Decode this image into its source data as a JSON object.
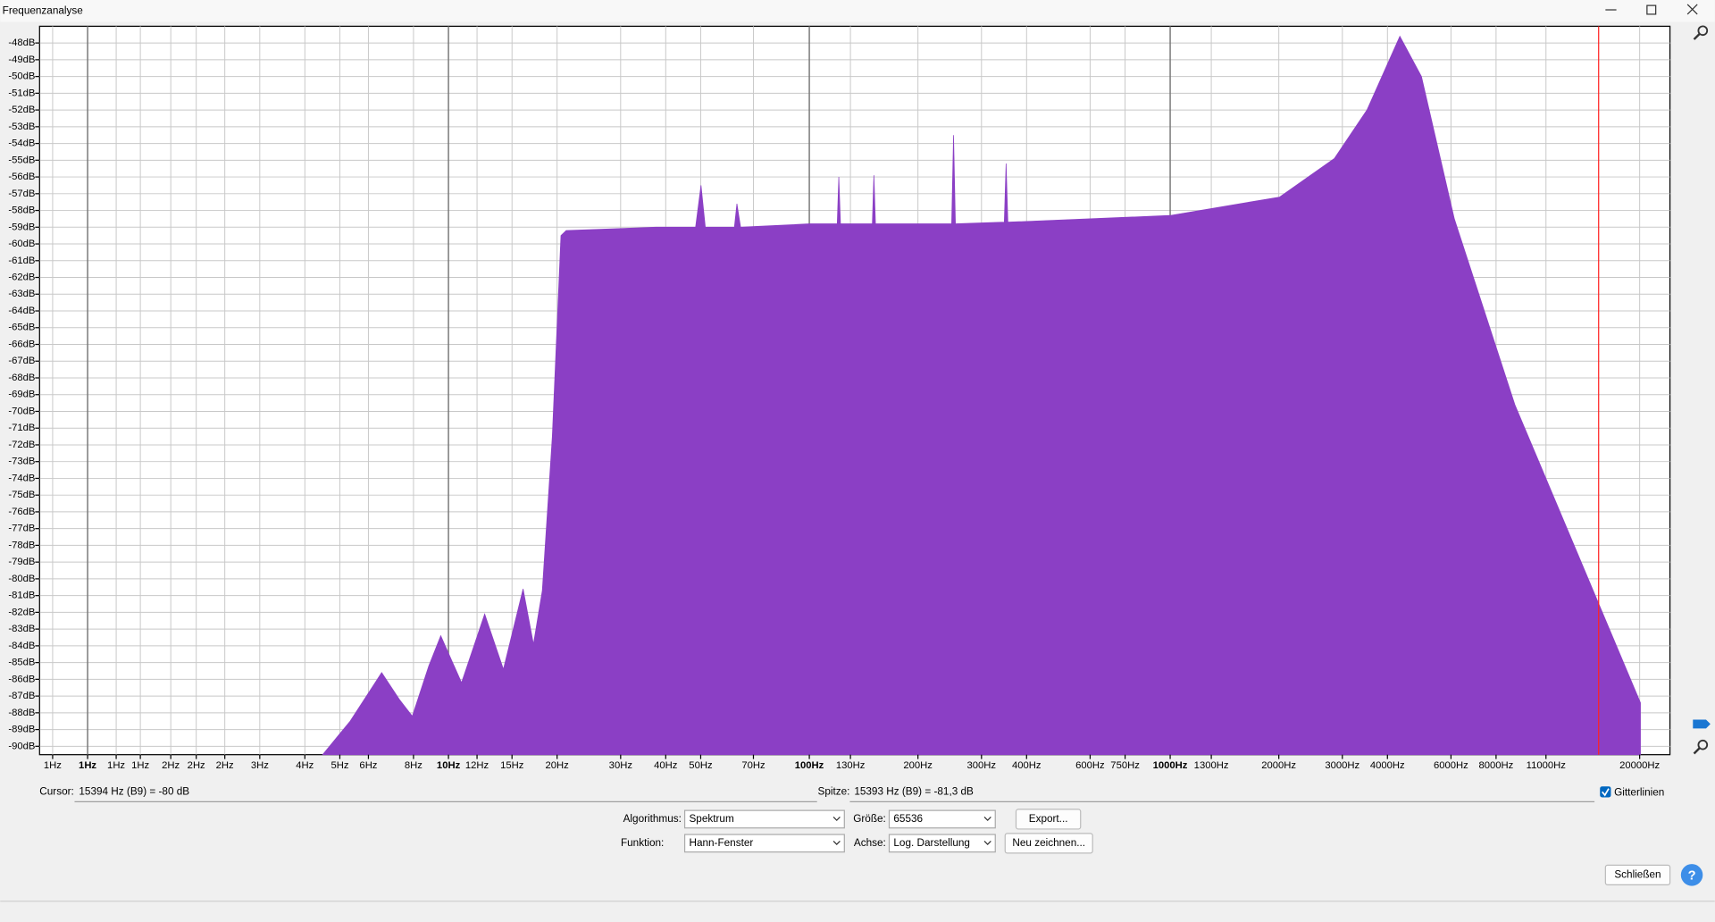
{
  "window_title": "Frequenzanalyse",
  "chart_data": {
    "type": "area",
    "xscale": "log",
    "grid": true,
    "color": "#8b3fc5",
    "cursor": 15394,
    "xlim": [
      0.736,
      24266
    ],
    "ylim": [
      -90.5,
      -47
    ],
    "xticks": [
      {
        "value": 0.8,
        "label": "1Hz"
      },
      {
        "value": 1,
        "label": "1Hz"
      },
      {
        "value": 1.2,
        "label": "1Hz"
      },
      {
        "value": 1.4,
        "label": "1Hz"
      },
      {
        "value": 1.7,
        "label": "2Hz"
      },
      {
        "value": 2,
        "label": "2Hz"
      },
      {
        "value": 2.4,
        "label": "2Hz"
      },
      {
        "value": 3,
        "label": "3Hz"
      },
      {
        "value": 4,
        "label": "4Hz"
      },
      {
        "value": 5,
        "label": "5Hz"
      },
      {
        "value": 6,
        "label": "6Hz"
      },
      {
        "value": 8,
        "label": "8Hz"
      },
      {
        "value": 10,
        "label": "10Hz"
      },
      {
        "value": 12,
        "label": "12Hz"
      },
      {
        "value": 15,
        "label": "15Hz"
      },
      {
        "value": 20,
        "label": "20Hz"
      },
      {
        "value": 30,
        "label": "30Hz"
      },
      {
        "value": 40,
        "label": "40Hz"
      },
      {
        "value": 50,
        "label": "50Hz"
      },
      {
        "value": 70,
        "label": "70Hz"
      },
      {
        "value": 100,
        "label": "100Hz"
      },
      {
        "value": 130,
        "label": "130Hz"
      },
      {
        "value": 200,
        "label": "200Hz"
      },
      {
        "value": 300,
        "label": "300Hz"
      },
      {
        "value": 400,
        "label": "400Hz"
      },
      {
        "value": 600,
        "label": "600Hz"
      },
      {
        "value": 750,
        "label": "750Hz"
      },
      {
        "value": 1000,
        "label": "1000Hz"
      },
      {
        "value": 1300,
        "label": "1300Hz"
      },
      {
        "value": 2000,
        "label": "2000Hz"
      },
      {
        "value": 3000,
        "label": "3000Hz"
      },
      {
        "value": 4000,
        "label": "4000Hz"
      },
      {
        "value": 6000,
        "label": "6000Hz"
      },
      {
        "value": 8000,
        "label": "8000Hz"
      },
      {
        "value": 11000,
        "label": "11000Hz"
      },
      {
        "value": 20000,
        "label": "20000Hz"
      }
    ],
    "yticks": [
      {
        "value": -48,
        "label": "-48dB"
      },
      {
        "value": -49,
        "label": "-49dB"
      },
      {
        "value": -50,
        "label": "-50dB"
      },
      {
        "value": -51,
        "label": "-51dB"
      },
      {
        "value": -52,
        "label": "-52dB"
      },
      {
        "value": -53,
        "label": "-53dB"
      },
      {
        "value": -54,
        "label": "-54dB"
      },
      {
        "value": -55,
        "label": "-55dB"
      },
      {
        "value": -56,
        "label": "-56dB"
      },
      {
        "value": -57,
        "label": "-57dB"
      },
      {
        "value": -58,
        "label": "-58dB"
      },
      {
        "value": -59,
        "label": "-59dB"
      },
      {
        "value": -60,
        "label": "-60dB"
      },
      {
        "value": -61,
        "label": "-61dB"
      },
      {
        "value": -62,
        "label": "-62dB"
      },
      {
        "value": -63,
        "label": "-63dB"
      },
      {
        "value": -64,
        "label": "-64dB"
      },
      {
        "value": -65,
        "label": "-65dB"
      },
      {
        "value": -66,
        "label": "-66dB"
      },
      {
        "value": -67,
        "label": "-67dB"
      },
      {
        "value": -68,
        "label": "-68dB"
      },
      {
        "value": -69,
        "label": "-69dB"
      },
      {
        "value": -70,
        "label": "-70dB"
      },
      {
        "value": -71,
        "label": "-71dB"
      },
      {
        "value": -72,
        "label": "-72dB"
      },
      {
        "value": -73,
        "label": "-73dB"
      },
      {
        "value": -74,
        "label": "-74dB"
      },
      {
        "value": -75,
        "label": "-75dB"
      },
      {
        "value": -76,
        "label": "-76dB"
      },
      {
        "value": -77,
        "label": "-77dB"
      },
      {
        "value": -78,
        "label": "-78dB"
      },
      {
        "value": -79,
        "label": "-79dB"
      },
      {
        "value": -80,
        "label": "-80dB"
      },
      {
        "value": -81,
        "label": "-81dB"
      },
      {
        "value": -82,
        "label": "-82dB"
      },
      {
        "value": -83,
        "label": "-83dB"
      },
      {
        "value": -84,
        "label": "-84dB"
      },
      {
        "value": -85,
        "label": "-85dB"
      },
      {
        "value": -86,
        "label": "-86dB"
      },
      {
        "value": -87,
        "label": "-87dB"
      },
      {
        "value": -88,
        "label": "-88dB"
      },
      {
        "value": -89,
        "label": "-89dB"
      },
      {
        "value": -90,
        "label": "-90dB"
      }
    ],
    "x": [
      4.48,
      5.34,
      6.53,
      7.31,
      7.94,
      8.82,
      9.52,
      10.87,
      12.6,
      14.2,
      16.1,
      17.2,
      18.2,
      19.4,
      20.5,
      21.2,
      37.6,
      48.4,
      50.1,
      51.5,
      62,
      63,
      64.5,
      100,
      119.5,
      120.7,
      122,
      149.5,
      151,
      152.5,
      248,
      251,
      254,
      347,
      351,
      355,
      1000,
      2010,
      2850,
      3510,
      4330,
      4970,
      6130,
      9020,
      20100
    ],
    "values": [
      -90.5,
      -88.5,
      -85.6,
      -87.2,
      -88.2,
      -85.2,
      -83.4,
      -86.2,
      -82.1,
      -85.4,
      -80.6,
      -83.9,
      -80.7,
      -71.5,
      -59.5,
      -59.2,
      -59.0,
      -59.0,
      -56.5,
      -59.0,
      -59.0,
      -57.6,
      -59.0,
      -58.8,
      -58.8,
      -56.0,
      -58.8,
      -58.8,
      -55.9,
      -58.8,
      -58.8,
      -53.5,
      -58.8,
      -58.7,
      -55.2,
      -58.7,
      -58.3,
      -57.2,
      -54.9,
      -52.0,
      -47.6,
      -50.0,
      -58.5,
      -69.6,
      -87.4
    ]
  },
  "controls": {
    "cursor_label": "Cursor:",
    "cursor_value": "15394 Hz (B9) = -80 dB",
    "peak_label": "Spitze:",
    "peak_value": "15393 Hz (B9) = -81,3 dB",
    "grid_checkbox": "Gitterlinien",
    "algorithm_label": "Algorithmus:",
    "algorithm_value": "Spektrum",
    "size_label": "Größe:",
    "size_value": "65536",
    "export_button": "Export...",
    "function_label": "Funktion:",
    "function_value": "Hann-Fenster",
    "axis_label": "Achse:",
    "axis_value": "Log. Darstellung",
    "redraw_button": "Neu zeichnen...",
    "close_button": "Schließen",
    "help_button": "?"
  }
}
